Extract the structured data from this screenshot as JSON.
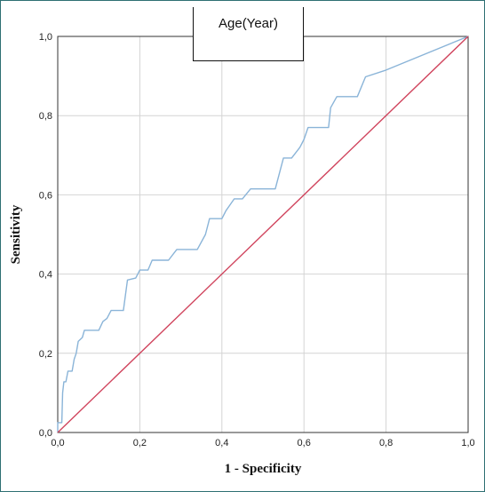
{
  "chart_data": {
    "type": "line",
    "title": "Age(Year)",
    "xlabel": "1 - Specificity",
    "ylabel": "Sensitivity",
    "xlim": [
      0,
      1
    ],
    "ylim": [
      0,
      1
    ],
    "x_ticks": [
      "0,0",
      "0,2",
      "0,4",
      "0,6",
      "0,8",
      "1,0"
    ],
    "y_ticks": [
      "0,0",
      "0,2",
      "0,4",
      "0,6",
      "0,8",
      "1,0"
    ],
    "grid": true,
    "series": [
      {
        "color": "#8ab4d8",
        "points": [
          [
            0,
            0
          ],
          [
            0,
            0.025
          ],
          [
            0.01,
            0.025
          ],
          [
            0.012,
            0.1
          ],
          [
            0.015,
            0.128
          ],
          [
            0.02,
            0.128
          ],
          [
            0.025,
            0.155
          ],
          [
            0.035,
            0.155
          ],
          [
            0.04,
            0.185
          ],
          [
            0.045,
            0.2
          ],
          [
            0.05,
            0.23
          ],
          [
            0.06,
            0.24
          ],
          [
            0.065,
            0.258
          ],
          [
            0.1,
            0.258
          ],
          [
            0.11,
            0.28
          ],
          [
            0.12,
            0.288
          ],
          [
            0.13,
            0.308
          ],
          [
            0.16,
            0.308
          ],
          [
            0.17,
            0.385
          ],
          [
            0.19,
            0.39
          ],
          [
            0.2,
            0.41
          ],
          [
            0.22,
            0.41
          ],
          [
            0.23,
            0.435
          ],
          [
            0.27,
            0.435
          ],
          [
            0.29,
            0.462
          ],
          [
            0.34,
            0.462
          ],
          [
            0.36,
            0.5
          ],
          [
            0.37,
            0.54
          ],
          [
            0.4,
            0.54
          ],
          [
            0.41,
            0.56
          ],
          [
            0.42,
            0.575
          ],
          [
            0.43,
            0.59
          ],
          [
            0.45,
            0.59
          ],
          [
            0.47,
            0.615
          ],
          [
            0.53,
            0.615
          ],
          [
            0.55,
            0.693
          ],
          [
            0.57,
            0.693
          ],
          [
            0.59,
            0.72
          ],
          [
            0.6,
            0.74
          ],
          [
            0.61,
            0.77
          ],
          [
            0.66,
            0.77
          ],
          [
            0.665,
            0.82
          ],
          [
            0.68,
            0.848
          ],
          [
            0.73,
            0.848
          ],
          [
            0.75,
            0.898
          ],
          [
            0.8,
            0.915
          ],
          [
            1.0,
            1.0
          ]
        ]
      },
      {
        "color": "#d0445d",
        "points": [
          [
            0,
            0
          ],
          [
            1,
            1
          ]
        ]
      }
    ]
  }
}
